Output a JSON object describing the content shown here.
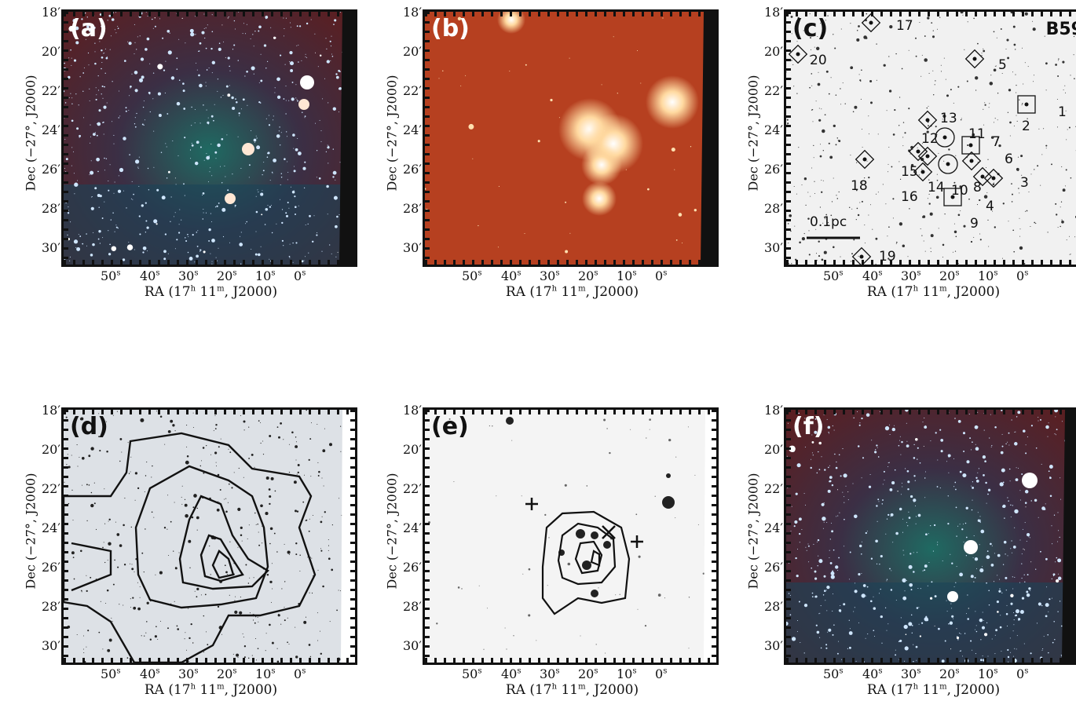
{
  "panels": [
    {
      "id": "a",
      "label": "(a)",
      "style": "rgb-dust"
    },
    {
      "id": "b",
      "label": "(b)",
      "style": "red-ir"
    },
    {
      "id": "c",
      "label": "(c)",
      "style": "gray-sources",
      "annotation": "B59",
      "scalebar": "0.1pc"
    },
    {
      "id": "d",
      "label": "(d)",
      "style": "gray-contours"
    },
    {
      "id": "e",
      "label": "(e)",
      "style": "light-contours"
    },
    {
      "id": "f",
      "label": "(f)",
      "style": "rgb-dust"
    }
  ],
  "axes": {
    "xlabel_prefix": "RA (17",
    "xlabel_h": "h",
    "xlabel_mid": " 11",
    "xlabel_m": "m",
    "xlabel_suffix": ", J2000)",
    "ylabel": "Dec (−27°, J2000)",
    "yticks": [
      "18′",
      "20′",
      "22′",
      "24′",
      "26′",
      "28′",
      "30′"
    ],
    "xticks": [
      {
        "v": "50",
        "u": "s"
      },
      {
        "v": "40",
        "u": "s"
      },
      {
        "v": "30",
        "u": "s"
      },
      {
        "v": "20",
        "u": "s"
      },
      {
        "v": "10",
        "u": "s"
      },
      {
        "v": "0",
        "u": "s"
      }
    ]
  },
  "source_labels": [
    {
      "t": "17",
      "x": 140,
      "y": 8
    },
    {
      "t": "20",
      "x": 30,
      "y": 52
    },
    {
      "t": "5",
      "x": 270,
      "y": 58
    },
    {
      "t": "1",
      "x": 346,
      "y": 118
    },
    {
      "t": "2",
      "x": 300,
      "y": 136
    },
    {
      "t": "13",
      "x": 196,
      "y": 126
    },
    {
      "t": "11",
      "x": 232,
      "y": 146
    },
    {
      "t": "7",
      "x": 262,
      "y": 156
    },
    {
      "t": "12",
      "x": 172,
      "y": 152
    },
    {
      "t": "6",
      "x": 278,
      "y": 178
    },
    {
      "t": "15",
      "x": 146,
      "y": 194
    },
    {
      "t": "14",
      "x": 180,
      "y": 214
    },
    {
      "t": "8",
      "x": 238,
      "y": 214
    },
    {
      "t": "3",
      "x": 298,
      "y": 208
    },
    {
      "t": "18",
      "x": 82,
      "y": 212
    },
    {
      "t": "10",
      "x": 210,
      "y": 218
    },
    {
      "t": "16",
      "x": 146,
      "y": 226
    },
    {
      "t": "4",
      "x": 254,
      "y": 238
    },
    {
      "t": "9",
      "x": 234,
      "y": 260
    },
    {
      "t": "19",
      "x": 118,
      "y": 302
    }
  ]
}
